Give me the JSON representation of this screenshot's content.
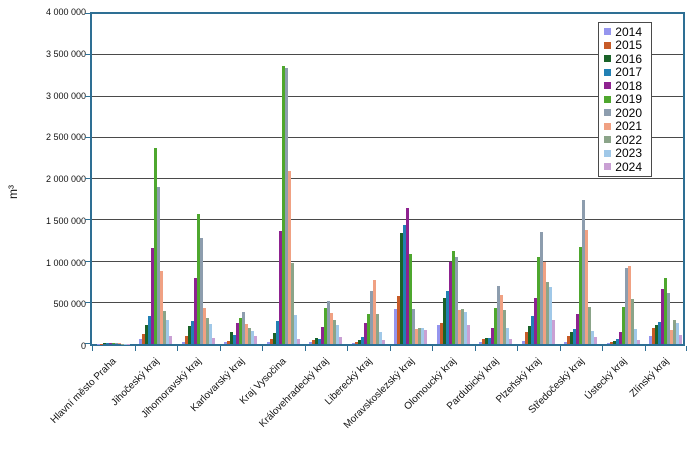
{
  "chart_data": {
    "type": "bar",
    "title": "",
    "xlabel": "",
    "ylabel": "m³",
    "ylim": [
      0,
      4000000
    ],
    "ytick_step": 500000,
    "ytick_labels": [
      "0",
      "500 000",
      "1 000 000",
      "1 500 000",
      "2 000 000",
      "2 500 000",
      "3 000 000",
      "3 500 000",
      "4 000 000"
    ],
    "grid": true,
    "legend_position": "top-right-inside",
    "frame_color": "#2e6f94",
    "grid_color": "#4a4a4a",
    "categories": [
      "Hlavní město Praha",
      "Jihočeský kraj",
      "Jihomoravský kraj",
      "Karlovarský kraj",
      "Kraj Vysočina",
      "Královehradecký kraj",
      "Liberecký kraj",
      "Moravskoslezský kraj",
      "Olomoucký kraj",
      "Pardubický kraj",
      "Plzeňský kraj",
      "Středočeský kraj",
      "Ústecký kraj",
      "Zlínský kraj"
    ],
    "series": [
      {
        "name": "2014",
        "color": "#9595ee",
        "values": [
          3000,
          60000,
          30000,
          30000,
          30000,
          30000,
          15000,
          430000,
          230000,
          30000,
          40000,
          20000,
          15000,
          100000
        ]
      },
      {
        "name": "2015",
        "color": "#c75b28",
        "values": [
          5000,
          120000,
          100000,
          40000,
          60000,
          45000,
          30000,
          580000,
          260000,
          60000,
          140000,
          100000,
          30000,
          190000
        ]
      },
      {
        "name": "2016",
        "color": "#1a6329",
        "values": [
          8000,
          235000,
          220000,
          140000,
          130000,
          70000,
          50000,
          1350000,
          560000,
          75000,
          220000,
          140000,
          40000,
          225000
        ]
      },
      {
        "name": "2017",
        "color": "#2180b4",
        "values": [
          10000,
          335000,
          280000,
          115000,
          280000,
          60000,
          80000,
          1440000,
          640000,
          75000,
          340000,
          180000,
          55000,
          265000
        ]
      },
      {
        "name": "2018",
        "color": "#8e2290",
        "values": [
          12000,
          1160000,
          800000,
          250000,
          1370000,
          210000,
          260000,
          1650000,
          990000,
          195000,
          560000,
          360000,
          145000,
          670000
        ]
      },
      {
        "name": "2019",
        "color": "#4ea72e",
        "values": [
          15000,
          2380000,
          1580000,
          315000,
          3370000,
          440000,
          360000,
          1090000,
          1130000,
          440000,
          1050000,
          1170000,
          450000,
          800000
        ]
      },
      {
        "name": "2020",
        "color": "#8d9dae",
        "values": [
          12000,
          1900000,
          1280000,
          390000,
          3350000,
          520000,
          640000,
          430000,
          1050000,
          700000,
          1360000,
          1750000,
          920000,
          620000
        ]
      },
      {
        "name": "2021",
        "color": "#f0a183",
        "values": [
          8000,
          890000,
          435000,
          240000,
          2100000,
          370000,
          770000,
          180000,
          410000,
          600000,
          1000000,
          1380000,
          940000,
          175000
        ]
      },
      {
        "name": "2022",
        "color": "#8ba489",
        "values": [
          6000,
          395000,
          315000,
          200000,
          980000,
          290000,
          360000,
          195000,
          430000,
          410000,
          750000,
          450000,
          540000,
          290000
        ]
      },
      {
        "name": "2023",
        "color": "#a0c8e8",
        "values": [
          5000,
          295000,
          240000,
          160000,
          350000,
          230000,
          140000,
          190000,
          390000,
          195000,
          690000,
          160000,
          185000,
          250000
        ]
      },
      {
        "name": "2024",
        "color": "#c9a0d4",
        "values": [
          4000,
          95000,
          75000,
          95000,
          60000,
          85000,
          50000,
          175000,
          230000,
          60000,
          290000,
          80000,
          50000,
          105000
        ]
      }
    ]
  }
}
